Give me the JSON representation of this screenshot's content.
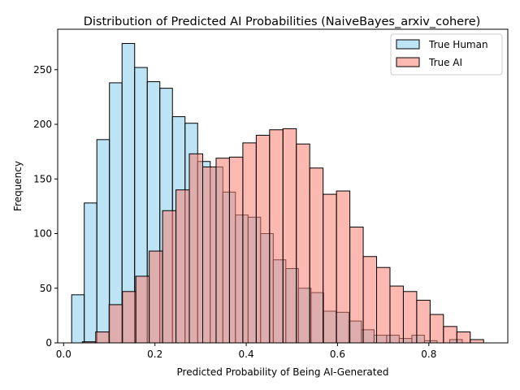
{
  "chart_data": {
    "type": "bar",
    "subtype": "histogram",
    "title": "Distribution of Predicted AI Probabilities (NaiveBayes_arxiv_cohere)",
    "xlabel": "Predicted Probability of Being AI-Generated",
    "ylabel": "Frequency",
    "xlim": [
      -0.013,
      0.973
    ],
    "ylim": [
      0,
      287
    ],
    "xticks": [
      0.0,
      0.2,
      0.4,
      0.6,
      0.8
    ],
    "xtick_labels": [
      "0.0",
      "0.2",
      "0.4",
      "0.6",
      "0.8"
    ],
    "yticks": [
      0,
      50,
      100,
      150,
      200,
      250
    ],
    "ytick_labels": [
      "0",
      "50",
      "100",
      "150",
      "200",
      "250"
    ],
    "grid": false,
    "legend": {
      "position": "top-right"
    },
    "series": [
      {
        "name": "True Human",
        "color": "#87CEEB",
        "alpha": 0.55,
        "edge_color": "#000000",
        "bin_start": 0.0176,
        "bin_width": 0.0276,
        "counts": [
          44,
          128,
          186,
          238,
          274,
          252,
          239,
          233,
          207,
          201,
          166,
          161,
          138,
          117,
          115,
          100,
          76,
          68,
          50,
          46,
          29,
          28,
          20,
          12,
          7,
          7,
          4,
          7,
          2,
          0,
          3
        ]
      },
      {
        "name": "True AI",
        "color": "#FA8072",
        "alpha": 0.55,
        "edge_color": "#000000",
        "bin_start": 0.041,
        "bin_width": 0.0293,
        "counts": [
          1,
          10,
          35,
          47,
          61,
          84,
          121,
          140,
          173,
          161,
          169,
          170,
          183,
          190,
          195,
          196,
          182,
          160,
          136,
          139,
          106,
          79,
          69,
          52,
          47,
          39,
          26,
          15,
          10,
          3
        ]
      }
    ]
  }
}
